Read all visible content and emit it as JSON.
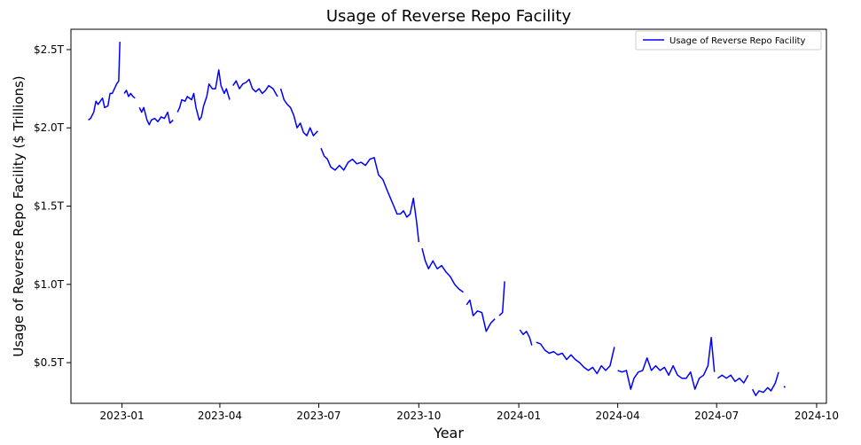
{
  "chart_data": {
    "type": "line",
    "title": "Usage of Reverse Repo Facility",
    "xlabel": "Year",
    "ylabel": "Usage of Reverse Repo Facility ($ Trillions)",
    "x_ticks": [
      "2023-01",
      "2023-04",
      "2023-07",
      "2023-10",
      "2024-01",
      "2024-04",
      "2024-07",
      "2024-10"
    ],
    "y_ticks": [
      "$0.5T",
      "$1.0T",
      "$1.5T",
      "$2.0T",
      "$2.5T"
    ],
    "y_tick_values": [
      0.5,
      1.0,
      1.5,
      2.0,
      2.5
    ],
    "xlim": [
      "2022-11-15",
      "2024-10-10"
    ],
    "ylim": [
      0.24,
      2.63
    ],
    "legend": {
      "position": "top-right",
      "entries": [
        "Usage of Reverse Repo Facility"
      ]
    },
    "grid": false,
    "series": [
      {
        "name": "Usage of Reverse Repo Facility",
        "color": "#0000ff",
        "points": [
          [
            "2022-12-01",
            2.05
          ],
          [
            "2022-12-03",
            2.06
          ],
          [
            "2022-12-06",
            2.1
          ],
          [
            "2022-12-08",
            2.17
          ],
          [
            "2022-12-10",
            2.15
          ],
          [
            "2022-12-12",
            2.17
          ],
          [
            "2022-12-14",
            2.19
          ],
          [
            "2022-12-16",
            2.13
          ],
          [
            "2022-12-19",
            2.14
          ],
          [
            "2022-12-21",
            2.22
          ],
          [
            "2022-12-23",
            2.22
          ],
          [
            "2022-12-27",
            2.28
          ],
          [
            "2022-12-29",
            2.3
          ],
          [
            "2022-12-30",
            2.55
          ],
          null,
          [
            "2023-01-03",
            2.22
          ],
          [
            "2023-01-05",
            2.24
          ],
          [
            "2023-01-07",
            2.2
          ],
          [
            "2023-01-09",
            2.22
          ],
          [
            "2023-01-11",
            2.2
          ],
          [
            "2023-01-13",
            2.19
          ],
          null,
          [
            "2023-01-17",
            2.13
          ],
          [
            "2023-01-19",
            2.1
          ],
          [
            "2023-01-21",
            2.13
          ],
          [
            "2023-01-24",
            2.05
          ],
          [
            "2023-01-26",
            2.02
          ],
          [
            "2023-01-28",
            2.05
          ],
          [
            "2023-01-31",
            2.06
          ],
          [
            "2023-02-03",
            2.04
          ],
          [
            "2023-02-06",
            2.07
          ],
          [
            "2023-02-09",
            2.06
          ],
          [
            "2023-02-12",
            2.1
          ],
          [
            "2023-02-14",
            2.03
          ],
          [
            "2023-02-17",
            2.05
          ],
          null,
          [
            "2023-02-21",
            2.1
          ],
          [
            "2023-02-23",
            2.13
          ],
          [
            "2023-02-25",
            2.18
          ],
          [
            "2023-02-28",
            2.17
          ],
          [
            "2023-03-02",
            2.2
          ],
          [
            "2023-03-06",
            2.18
          ],
          [
            "2023-03-08",
            2.22
          ],
          [
            "2023-03-10",
            2.13
          ],
          [
            "2023-03-13",
            2.05
          ],
          [
            "2023-03-15",
            2.07
          ],
          [
            "2023-03-17",
            2.14
          ],
          [
            "2023-03-20",
            2.2
          ],
          [
            "2023-03-22",
            2.28
          ],
          [
            "2023-03-25",
            2.25
          ],
          [
            "2023-03-28",
            2.25
          ],
          [
            "2023-03-31",
            2.37
          ],
          [
            "2023-04-02",
            2.27
          ],
          [
            "2023-04-05",
            2.22
          ],
          [
            "2023-04-07",
            2.25
          ],
          [
            "2023-04-10",
            2.18
          ],
          null,
          [
            "2023-04-13",
            2.27
          ],
          [
            "2023-04-16",
            2.3
          ],
          [
            "2023-04-19",
            2.25
          ],
          [
            "2023-04-22",
            2.28
          ],
          [
            "2023-04-25",
            2.29
          ],
          [
            "2023-04-28",
            2.31
          ],
          [
            "2023-05-01",
            2.25
          ],
          [
            "2023-05-04",
            2.23
          ],
          [
            "2023-05-07",
            2.25
          ],
          [
            "2023-05-10",
            2.22
          ],
          [
            "2023-05-13",
            2.24
          ],
          [
            "2023-05-16",
            2.27
          ],
          [
            "2023-05-20",
            2.25
          ],
          [
            "2023-05-24",
            2.2
          ],
          null,
          [
            "2023-05-27",
            2.25
          ],
          [
            "2023-05-30",
            2.18
          ],
          [
            "2023-06-02",
            2.15
          ],
          [
            "2023-06-05",
            2.13
          ],
          [
            "2023-06-08",
            2.08
          ],
          [
            "2023-06-11",
            2.0
          ],
          [
            "2023-06-14",
            2.03
          ],
          [
            "2023-06-17",
            1.97
          ],
          [
            "2023-06-20",
            1.95
          ],
          [
            "2023-06-23",
            2.0
          ],
          [
            "2023-06-26",
            1.95
          ],
          [
            "2023-06-30",
            1.98
          ],
          null,
          [
            "2023-07-03",
            1.87
          ],
          [
            "2023-07-06",
            1.82
          ],
          [
            "2023-07-09",
            1.8
          ],
          [
            "2023-07-12",
            1.75
          ],
          [
            "2023-07-16",
            1.73
          ],
          [
            "2023-07-20",
            1.76
          ],
          [
            "2023-07-24",
            1.73
          ],
          [
            "2023-07-28",
            1.78
          ],
          [
            "2023-08-01",
            1.8
          ],
          [
            "2023-08-05",
            1.77
          ],
          [
            "2023-08-09",
            1.78
          ],
          [
            "2023-08-13",
            1.76
          ],
          [
            "2023-08-17",
            1.8
          ],
          [
            "2023-08-21",
            1.81
          ],
          [
            "2023-08-25",
            1.7
          ],
          [
            "2023-08-29",
            1.67
          ],
          [
            "2023-09-02",
            1.6
          ],
          [
            "2023-09-05",
            1.55
          ],
          [
            "2023-09-08",
            1.5
          ],
          [
            "2023-09-11",
            1.45
          ],
          [
            "2023-09-14",
            1.45
          ],
          [
            "2023-09-17",
            1.47
          ],
          [
            "2023-09-20",
            1.43
          ],
          [
            "2023-09-23",
            1.45
          ],
          [
            "2023-09-26",
            1.55
          ],
          [
            "2023-09-29",
            1.4
          ],
          [
            "2023-10-01",
            1.27
          ],
          null,
          [
            "2023-10-04",
            1.23
          ],
          [
            "2023-10-07",
            1.15
          ],
          [
            "2023-10-10",
            1.1
          ],
          [
            "2023-10-14",
            1.15
          ],
          [
            "2023-10-18",
            1.1
          ],
          [
            "2023-10-22",
            1.12
          ],
          [
            "2023-10-26",
            1.08
          ],
          [
            "2023-10-30",
            1.05
          ],
          [
            "2023-11-03",
            1.0
          ],
          [
            "2023-11-07",
            0.97
          ],
          [
            "2023-11-11",
            0.95
          ],
          null,
          [
            "2023-11-14",
            0.87
          ],
          [
            "2023-11-17",
            0.9
          ],
          [
            "2023-11-20",
            0.8
          ],
          [
            "2023-11-24",
            0.83
          ],
          [
            "2023-11-28",
            0.82
          ],
          [
            "2023-12-02",
            0.7
          ],
          [
            "2023-12-06",
            0.75
          ],
          [
            "2023-12-10",
            0.78
          ],
          null,
          [
            "2023-12-14",
            0.8
          ],
          [
            "2023-12-17",
            0.82
          ],
          [
            "2023-12-19",
            1.02
          ],
          null,
          [
            "2024-01-02",
            0.71
          ],
          [
            "2024-01-05",
            0.68
          ],
          [
            "2024-01-08",
            0.7
          ],
          [
            "2024-01-11",
            0.66
          ],
          [
            "2024-01-13",
            0.61
          ],
          null,
          [
            "2024-01-17",
            0.63
          ],
          [
            "2024-01-21",
            0.62
          ],
          [
            "2024-01-25",
            0.58
          ],
          [
            "2024-01-29",
            0.56
          ],
          [
            "2024-02-02",
            0.57
          ],
          [
            "2024-02-06",
            0.55
          ],
          [
            "2024-02-10",
            0.56
          ],
          [
            "2024-02-14",
            0.52
          ],
          [
            "2024-02-18",
            0.55
          ],
          [
            "2024-02-22",
            0.52
          ],
          [
            "2024-02-26",
            0.5
          ],
          [
            "2024-03-01",
            0.47
          ],
          [
            "2024-03-05",
            0.45
          ],
          [
            "2024-03-09",
            0.47
          ],
          [
            "2024-03-13",
            0.43
          ],
          [
            "2024-03-17",
            0.48
          ],
          [
            "2024-03-21",
            0.45
          ],
          [
            "2024-03-25",
            0.48
          ],
          [
            "2024-03-29",
            0.6
          ],
          null,
          [
            "2024-04-01",
            0.45
          ],
          [
            "2024-04-05",
            0.44
          ],
          [
            "2024-04-09",
            0.45
          ],
          [
            "2024-04-13",
            0.33
          ],
          [
            "2024-04-16",
            0.4
          ],
          [
            "2024-04-20",
            0.44
          ],
          [
            "2024-04-24",
            0.45
          ],
          [
            "2024-04-28",
            0.53
          ],
          [
            "2024-05-02",
            0.45
          ],
          [
            "2024-05-06",
            0.48
          ],
          [
            "2024-05-10",
            0.45
          ],
          [
            "2024-05-14",
            0.47
          ],
          [
            "2024-05-18",
            0.42
          ],
          [
            "2024-05-22",
            0.48
          ],
          [
            "2024-05-26",
            0.42
          ],
          [
            "2024-05-30",
            0.4
          ],
          [
            "2024-06-03",
            0.4
          ],
          [
            "2024-06-07",
            0.44
          ],
          [
            "2024-06-11",
            0.33
          ],
          [
            "2024-06-15",
            0.4
          ],
          [
            "2024-06-19",
            0.42
          ],
          [
            "2024-06-23",
            0.48
          ],
          [
            "2024-06-26",
            0.66
          ],
          [
            "2024-06-29",
            0.44
          ],
          null,
          [
            "2024-07-02",
            0.4
          ],
          [
            "2024-07-06",
            0.42
          ],
          [
            "2024-07-10",
            0.4
          ],
          [
            "2024-07-14",
            0.42
          ],
          [
            "2024-07-18",
            0.38
          ],
          [
            "2024-07-22",
            0.4
          ],
          [
            "2024-07-26",
            0.37
          ],
          [
            "2024-07-30",
            0.42
          ],
          null,
          [
            "2024-08-03",
            0.33
          ],
          [
            "2024-08-06",
            0.29
          ],
          [
            "2024-08-09",
            0.32
          ],
          [
            "2024-08-13",
            0.31
          ],
          [
            "2024-08-17",
            0.34
          ],
          [
            "2024-08-20",
            0.32
          ],
          [
            "2024-08-24",
            0.37
          ],
          [
            "2024-08-27",
            0.44
          ],
          null,
          [
            "2024-09-01",
            0.35
          ],
          [
            "2024-09-02",
            0.34
          ]
        ]
      }
    ]
  }
}
